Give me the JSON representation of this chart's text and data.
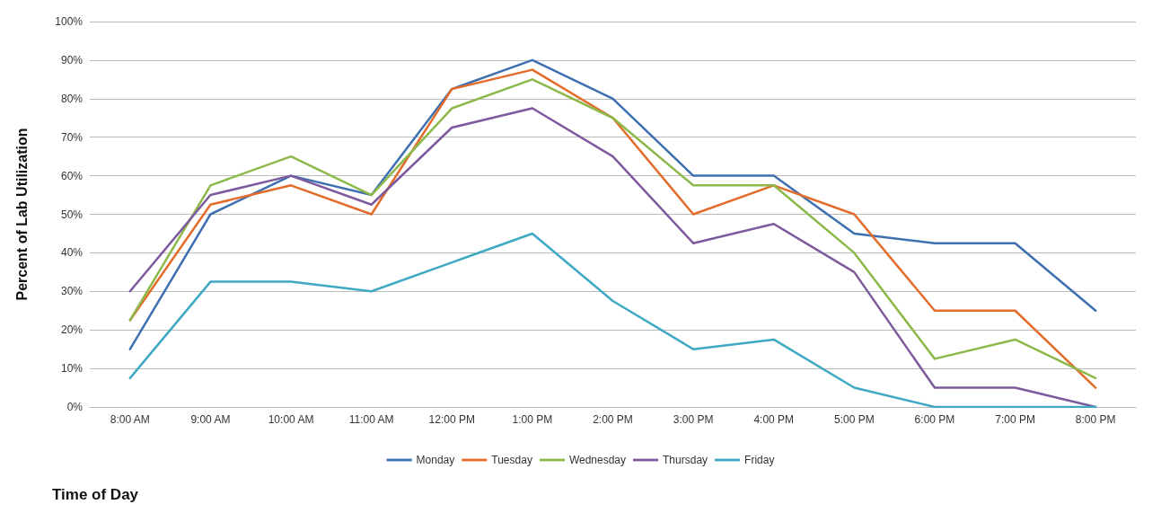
{
  "chart_data": {
    "type": "line",
    "xlabel": "Time of Day",
    "ylabel": "Percent of Lab Utilization",
    "categories": [
      "8:00 AM",
      "9:00 AM",
      "10:00 AM",
      "11:00 AM",
      "12:00 PM",
      "1:00 PM",
      "2:00 PM",
      "3:00 PM",
      "4:00 PM",
      "5:00 PM",
      "6:00 PM",
      "7:00 PM",
      "8:00 PM"
    ],
    "series": [
      {
        "name": "Monday",
        "color": "#3e6fb0",
        "values": [
          15,
          50,
          60,
          55,
          82.5,
          90,
          80,
          60,
          60,
          45,
          42.5,
          42.5,
          25
        ]
      },
      {
        "name": "Tuesday",
        "color": "#e36c2a",
        "values": [
          22.5,
          52.5,
          57.5,
          50,
          82.5,
          87.5,
          75,
          50,
          57.5,
          50,
          25,
          25,
          5
        ]
      },
      {
        "name": "Wednesday",
        "color": "#8db84a",
        "values": [
          22.5,
          57.5,
          65,
          55,
          77.5,
          85,
          75,
          57.5,
          57.5,
          40,
          12.5,
          17.5,
          7.5
        ]
      },
      {
        "name": "Thursday",
        "color": "#7d5a9e",
        "values": [
          30,
          55,
          60,
          52.5,
          72.5,
          77.5,
          65,
          42.5,
          47.5,
          35,
          5,
          5,
          0
        ]
      },
      {
        "name": "Friday",
        "color": "#3fa9c4",
        "values": [
          7.5,
          32.5,
          32.5,
          30,
          37.5,
          45,
          27.5,
          15,
          17.5,
          5,
          0,
          0,
          0
        ]
      }
    ],
    "ylim": [
      0,
      100
    ],
    "yticks": [
      {
        "value": 0,
        "label": "0%"
      },
      {
        "value": 10,
        "label": "10%"
      },
      {
        "value": 20,
        "label": "20%"
      },
      {
        "value": 30,
        "label": "30%"
      },
      {
        "value": 40,
        "label": "40%"
      },
      {
        "value": 50,
        "label": "50%"
      },
      {
        "value": 60,
        "label": "60%"
      },
      {
        "value": 70,
        "label": "70%"
      },
      {
        "value": 80,
        "label": "80%"
      },
      {
        "value": 90,
        "label": "90%"
      },
      {
        "value": 100,
        "label": "100%"
      }
    ],
    "grid": "y",
    "legend": "bottom",
    "marker": "none",
    "line_style": "solid"
  }
}
